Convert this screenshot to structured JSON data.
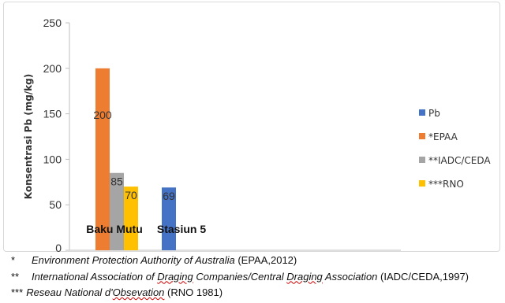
{
  "chart_data": {
    "type": "bar",
    "categories": [
      "Baku Mutu",
      "Stasiun 5"
    ],
    "series": [
      {
        "name": "Pb",
        "color": "#4472c4",
        "values": [
          null,
          69
        ]
      },
      {
        "name": "*EPAA",
        "color": "#ed7d31",
        "values": [
          200,
          null
        ]
      },
      {
        "name": "**IADC/CEDA",
        "color": "#a5a5a5",
        "values": [
          85,
          null
        ]
      },
      {
        "name": "***RNO",
        "color": "#ffc000",
        "values": [
          70,
          null
        ]
      }
    ],
    "data_labels": {
      "Baku Mutu": [
        "200",
        "85",
        "70"
      ],
      "Stasiun 5": [
        "69"
      ]
    },
    "ylabel": "Konsentrasi Pb (mg/kg)",
    "ylim": [
      0,
      250
    ],
    "yticks": [
      0,
      50,
      100,
      150,
      200,
      250
    ],
    "grid": false,
    "legend_position": "right"
  },
  "footnotes": [
    {
      "mark": "*",
      "italic": "Environment Protection Authority of Australia",
      "squiggle": "",
      "plain": " (EPAA,2012)"
    },
    {
      "mark": "**",
      "italic": "International Association of ",
      "squiggle": "Draging",
      "italic2": " Companies/Central ",
      "squiggle2": "Draging",
      "italic3": " Association",
      "plain": " (IADC/CEDA,1997)"
    },
    {
      "mark": "***",
      "italic": "Reseau National d'",
      "squiggle": "Obsevation",
      "plain": " (RNO 1981)"
    }
  ]
}
